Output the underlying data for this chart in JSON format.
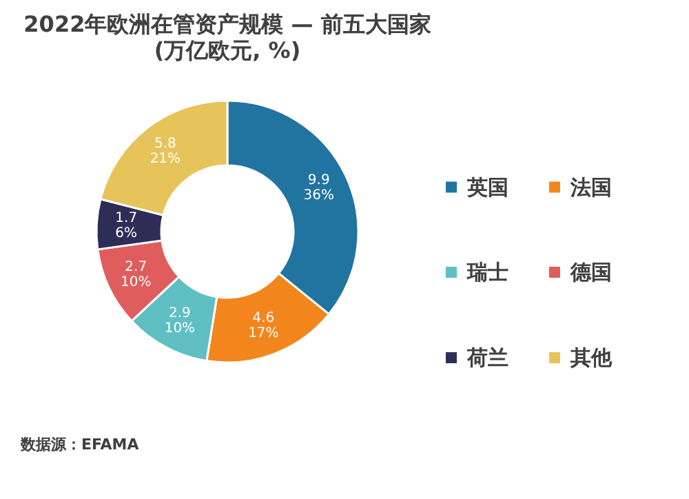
{
  "chart_data": {
    "type": "donut",
    "title": "2022年欧洲在管资产规模 — 前五大国家",
    "subtitle": "(万亿欧元, %)",
    "categories": [
      "英国",
      "法国",
      "瑞士",
      "德国",
      "荷兰",
      "其他"
    ],
    "values": [
      9.9,
      4.6,
      2.9,
      2.7,
      1.7,
      5.8
    ],
    "colors": [
      "#2274a0",
      "#f2861c",
      "#5fbfc2",
      "#e05d5d",
      "#2e2d57",
      "#e6c45a"
    ],
    "value_labels": [
      "9.9\n36%",
      "4.6\n17%",
      "2.9\n10%",
      "2.7\n10%",
      "1.7\n6%",
      "5.8\n21%"
    ],
    "legend": "right",
    "annotations": [
      "数据源：EFAMA"
    ]
  }
}
